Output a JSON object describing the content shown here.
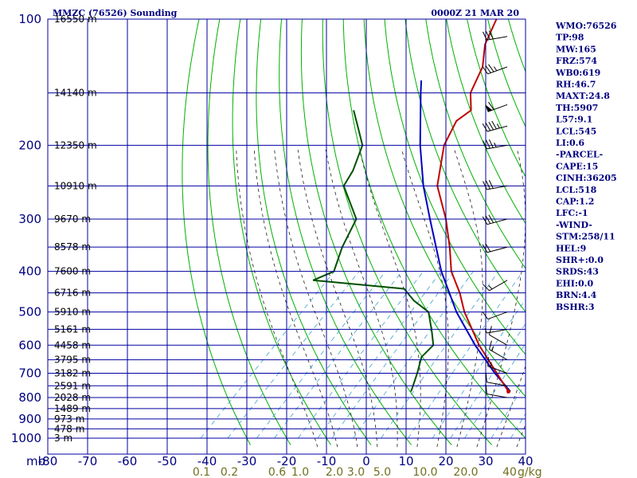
{
  "chart_data": {
    "type": "skew-t sounding",
    "title": "MMZC (76526) Sounding",
    "time_label": "0000Z 21 MAR 20",
    "pressure_unit": "mb",
    "mixing_ratio_unit": "g/kg",
    "pressure_levels": [
      100,
      200,
      300,
      400,
      500,
      600,
      700,
      800,
      900,
      1000
    ],
    "temperature_ticks": [
      -80,
      -70,
      -60,
      -50,
      -40,
      -30,
      -20,
      -10,
      0,
      10,
      20,
      30,
      40
    ],
    "height_labels": [
      {
        "p": 100,
        "label": "16550 m"
      },
      {
        "p": 150,
        "label": "14140 m"
      },
      {
        "p": 200,
        "label": "12350 m"
      },
      {
        "p": 250,
        "label": "10910 m"
      },
      {
        "p": 300,
        "label": "9670 m"
      },
      {
        "p": 350,
        "label": "8578 m"
      },
      {
        "p": 400,
        "label": "7600 m"
      },
      {
        "p": 450,
        "label": "6716 m"
      },
      {
        "p": 500,
        "label": "5910 m"
      },
      {
        "p": 550,
        "label": "5161 m"
      },
      {
        "p": 600,
        "label": "4458 m"
      },
      {
        "p": 650,
        "label": "3795 m"
      },
      {
        "p": 700,
        "label": "3182 m"
      },
      {
        "p": 750,
        "label": "2591 m"
      },
      {
        "p": 800,
        "label": "2028 m"
      },
      {
        "p": 850,
        "label": "1489 m"
      },
      {
        "p": 900,
        "label": "973 m"
      },
      {
        "p": 950,
        "label": "478 m"
      },
      {
        "p": 1000,
        "label": "3 m"
      }
    ],
    "mixing_ratio_labels": [
      "0.1",
      "0.2",
      "0.6",
      "1.0",
      "2.0",
      "3.0",
      "5.0",
      "10.0",
      "20.0",
      "40"
    ],
    "temperature_profile": [
      {
        "p": 774,
        "t": 24.0
      },
      {
        "p": 700,
        "t": 16.5
      },
      {
        "p": 600,
        "t": 5.0
      },
      {
        "p": 500,
        "t": -7.0
      },
      {
        "p": 450,
        "t": -13.0
      },
      {
        "p": 400,
        "t": -20.5
      },
      {
        "p": 350,
        "t": -27.0
      },
      {
        "p": 300,
        "t": -35.0
      },
      {
        "p": 250,
        "t": -45.5
      },
      {
        "p": 200,
        "t": -54.0
      },
      {
        "p": 175,
        "t": -57.0
      },
      {
        "p": 165,
        "t": -56.0
      },
      {
        "p": 150,
        "t": -60.5
      },
      {
        "p": 130,
        "t": -64.0
      },
      {
        "p": 115,
        "t": -69.0
      },
      {
        "p": 100,
        "t": -72.5
      }
    ],
    "dewpoint_profile": [
      {
        "p": 774,
        "t": -0.5
      },
      {
        "p": 760,
        "t": -1.0
      },
      {
        "p": 700,
        "t": -3.5
      },
      {
        "p": 640,
        "t": -6.5
      },
      {
        "p": 600,
        "t": -6.5
      },
      {
        "p": 560,
        "t": -10.0
      },
      {
        "p": 500,
        "t": -16.0
      },
      {
        "p": 470,
        "t": -22.5
      },
      {
        "p": 440,
        "t": -28.0
      },
      {
        "p": 420,
        "t": -53.0
      },
      {
        "p": 400,
        "t": -50.0
      },
      {
        "p": 350,
        "t": -54.0
      },
      {
        "p": 300,
        "t": -57.5
      },
      {
        "p": 250,
        "t": -69.0
      },
      {
        "p": 230,
        "t": -70.5
      },
      {
        "p": 200,
        "t": -74.5
      },
      {
        "p": 180,
        "t": -80.5
      },
      {
        "p": 165,
        "t": -85.5
      }
    ],
    "parcel_profile": [
      {
        "p": 774,
        "t": 24.5
      },
      {
        "p": 700,
        "t": 16.0
      },
      {
        "p": 600,
        "t": 4.0
      },
      {
        "p": 500,
        "t": -9.0
      },
      {
        "p": 400,
        "t": -23.0
      },
      {
        "p": 300,
        "t": -39.0
      },
      {
        "p": 250,
        "t": -49.0
      },
      {
        "p": 200,
        "t": -60.0
      },
      {
        "p": 150,
        "t": -73.0
      },
      {
        "p": 140,
        "t": -76.0
      }
    ],
    "wind_barbs": [
      {
        "p": 110,
        "dir": 260,
        "spd": 30
      },
      {
        "p": 130,
        "dir": 250,
        "spd": 35
      },
      {
        "p": 160,
        "dir": 250,
        "spd": 60
      },
      {
        "p": 180,
        "dir": 255,
        "spd": 45
      },
      {
        "p": 200,
        "dir": 260,
        "spd": 35
      },
      {
        "p": 250,
        "dir": 260,
        "spd": 30
      },
      {
        "p": 300,
        "dir": 255,
        "spd": 30
      },
      {
        "p": 350,
        "dir": 255,
        "spd": 20
      },
      {
        "p": 420,
        "dir": 240,
        "spd": 15
      },
      {
        "p": 500,
        "dir": 250,
        "spd": 10
      },
      {
        "p": 550,
        "dir": 260,
        "spd": 5
      },
      {
        "p": 600,
        "dir": 300,
        "spd": 10
      },
      {
        "p": 650,
        "dir": 300,
        "spd": 15
      },
      {
        "p": 700,
        "dir": 290,
        "spd": 15
      },
      {
        "p": 750,
        "dir": 280,
        "spd": 10
      },
      {
        "p": 800,
        "dir": 280,
        "spd": 10
      }
    ],
    "indices": [
      {
        "key": "WMO",
        "value": "76526"
      },
      {
        "key": "TP",
        "value": "98"
      },
      {
        "key": "MW",
        "value": "165"
      },
      {
        "key": "FRZ",
        "value": "574"
      },
      {
        "key": "WB0",
        "value": "619"
      },
      {
        "key": "RH",
        "value": "46.7"
      },
      {
        "key": "MAXT",
        "value": "24.8"
      },
      {
        "key": "TH",
        "value": "5907"
      },
      {
        "key": "L57",
        "value": "9.1"
      },
      {
        "key": "LCL",
        "value": "545"
      },
      {
        "key": "LI",
        "value": "0.6"
      },
      {
        "key": "-PARCEL-",
        "value": ""
      },
      {
        "key": "CAPE",
        "value": "15"
      },
      {
        "key": "CINH",
        "value": "36205"
      },
      {
        "key": "LCL",
        "value": "518"
      },
      {
        "key": "CAP",
        "value": "1.2"
      },
      {
        "key": "LFC",
        "value": "-1"
      },
      {
        "key": "-WIND-",
        "value": ""
      },
      {
        "key": "STM",
        "value": "258/11"
      },
      {
        "key": "HEL",
        "value": "9"
      },
      {
        "key": "SHR+",
        "value": "0.0"
      },
      {
        "key": "SRDS",
        "value": "43"
      },
      {
        "key": "EHI",
        "value": "0.0"
      },
      {
        "key": "BRN",
        "value": "4.4"
      },
      {
        "key": "BSHR",
        "value": "3"
      }
    ],
    "colors": {
      "grid": "#0000a0",
      "dry_adiabat": "#00b000",
      "moist_adiabat": "#202020",
      "mixing_ratio": "#40a0d0",
      "temperature": "#c00000",
      "dewpoint": "#005000",
      "parcel": "#0000c0",
      "text": "#000080",
      "mr_text": "#707020"
    }
  }
}
